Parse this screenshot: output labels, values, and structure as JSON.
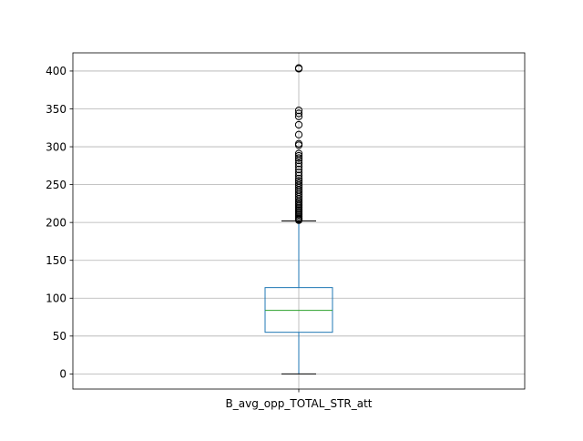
{
  "chart_data": {
    "type": "box",
    "categories": [
      "B_avg_opp_TOTAL_STR_att"
    ],
    "box": {
      "whisker_low": 0,
      "q1": 55,
      "median": 84,
      "q3": 114,
      "whisker_high": 202
    },
    "outliers": [
      404,
      403,
      348,
      344,
      340,
      329,
      316,
      304,
      302,
      291,
      288,
      285,
      282,
      278,
      274,
      270,
      266,
      262,
      258,
      255,
      252,
      249,
      246,
      243,
      240,
      237,
      234,
      231,
      228,
      226,
      224,
      222,
      220,
      218,
      216,
      214,
      212,
      210,
      208,
      206,
      205,
      204,
      203
    ],
    "yticks": [
      0,
      50,
      100,
      150,
      200,
      250,
      300,
      350,
      400
    ],
    "ylim": [
      -20,
      424
    ],
    "grid": true,
    "colors": {
      "box": "#1f77b4",
      "median": "#2ca02c",
      "cap": "#000000",
      "outlier": "#000000",
      "grid": "#b0b0b0"
    }
  }
}
